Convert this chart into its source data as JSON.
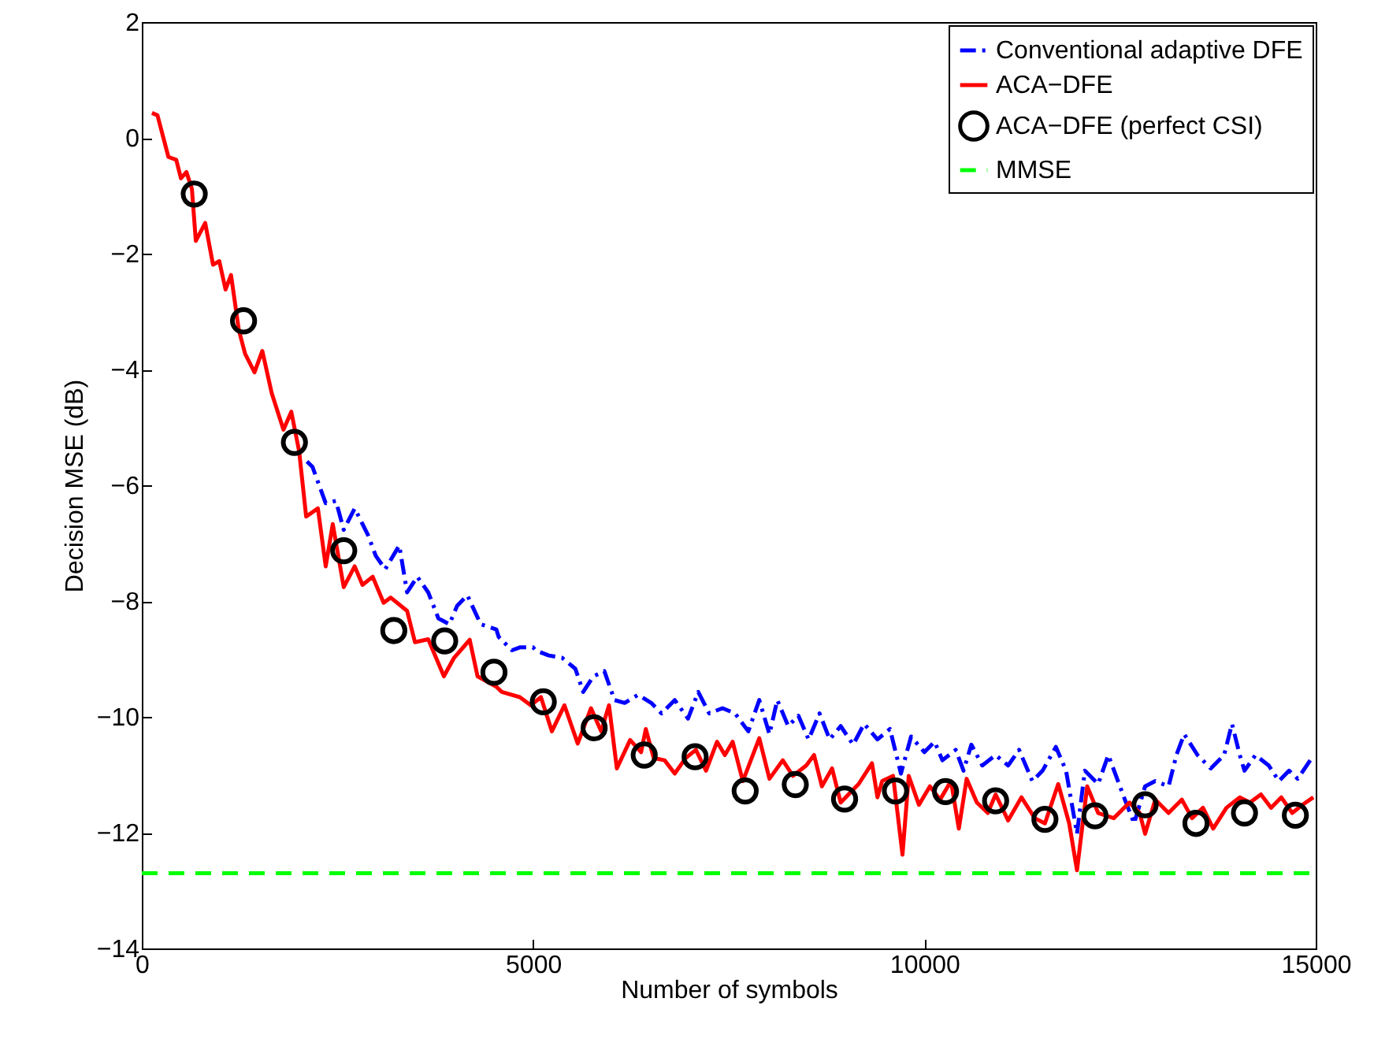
{
  "chart_data": {
    "type": "line",
    "xlabel": "Number of symbols",
    "ylabel": "Decision MSE (dB)",
    "xlim": [
      0,
      15000
    ],
    "ylim": [
      -14,
      2
    ],
    "xticks": [
      0,
      5000,
      10000,
      15000
    ],
    "yticks": [
      -14,
      -12,
      -10,
      -8,
      -6,
      -4,
      -2,
      0,
      2
    ],
    "legend": "top right",
    "series": [
      {
        "name": "Conventional adaptive DFE",
        "line_style": "dashdot",
        "color": "#0000ff",
        "x": [
          2110,
          2180,
          2350,
          2480,
          2580,
          2720,
          2890,
          2990,
          3110,
          3290,
          3390,
          3520,
          3660,
          3790,
          3930,
          4030,
          4160,
          4330,
          4530,
          4560,
          4730,
          4830,
          5000,
          5030,
          5200,
          5370,
          5540,
          5640,
          5770,
          5910,
          6040,
          6170,
          6340,
          6510,
          6640,
          6810,
          6980,
          7110,
          7250,
          7420,
          7580,
          7750,
          7890,
          8020,
          8120,
          8260,
          8390,
          8520,
          8660,
          8790,
          8930,
          9090,
          9230,
          9400,
          9560,
          9700,
          9830,
          10000,
          10130,
          10230,
          10400,
          10500,
          10600,
          10740,
          10910,
          11070,
          11210,
          11380,
          11510,
          11680,
          11810,
          11950,
          12050,
          12220,
          12350,
          12550,
          12680,
          12820,
          12950,
          13120,
          13220,
          13320,
          13490,
          13660,
          13830,
          13930,
          14030,
          14090,
          14230,
          14400,
          14530,
          14660,
          14770,
          14930
        ],
        "values": [
          -5.59,
          -5.68,
          -6.31,
          -6.27,
          -6.77,
          -6.4,
          -6.86,
          -7.22,
          -7.45,
          -7.04,
          -7.85,
          -7.58,
          -7.85,
          -8.3,
          -8.4,
          -8.08,
          -7.9,
          -8.4,
          -8.49,
          -8.62,
          -8.85,
          -8.8,
          -8.8,
          -8.85,
          -8.94,
          -8.98,
          -9.17,
          -9.57,
          -9.3,
          -9.21,
          -9.71,
          -9.76,
          -9.62,
          -9.76,
          -9.94,
          -9.71,
          -10.03,
          -9.57,
          -9.94,
          -9.85,
          -9.94,
          -10.25,
          -9.71,
          -10.3,
          -9.71,
          -10.16,
          -9.98,
          -10.39,
          -9.94,
          -10.39,
          -10.16,
          -10.48,
          -10.12,
          -10.39,
          -10.21,
          -10.98,
          -10.34,
          -10.61,
          -10.43,
          -10.75,
          -10.57,
          -10.93,
          -10.48,
          -10.84,
          -10.66,
          -10.84,
          -10.57,
          -11.11,
          -10.93,
          -10.52,
          -10.93,
          -12.02,
          -10.93,
          -11.16,
          -10.66,
          -11.39,
          -11.84,
          -11.2,
          -11.11,
          -11.2,
          -10.66,
          -10.3,
          -10.66,
          -10.89,
          -10.66,
          -10.12,
          -10.66,
          -10.93,
          -10.66,
          -10.84,
          -11.11,
          -10.93,
          -11.07,
          -10.75
        ]
      },
      {
        "name": "ACA−DFE",
        "line_style": "solid",
        "color": "#ff0000",
        "x": [
          130,
          200,
          340,
          440,
          500,
          570,
          640,
          690,
          810,
          910,
          990,
          1070,
          1140,
          1240,
          1320,
          1440,
          1540,
          1660,
          1810,
          1910,
          2010,
          2100,
          2250,
          2350,
          2440,
          2580,
          2720,
          2820,
          2950,
          3090,
          3180,
          3390,
          3490,
          3660,
          3860,
          3990,
          4190,
          4290,
          4530,
          4600,
          4830,
          4970,
          5100,
          5240,
          5400,
          5570,
          5740,
          5870,
          5970,
          6070,
          6240,
          6380,
          6440,
          6540,
          6680,
          6810,
          6950,
          7080,
          7210,
          7350,
          7450,
          7550,
          7680,
          7890,
          8020,
          8190,
          8320,
          8490,
          8590,
          8690,
          8820,
          8930,
          9160,
          9330,
          9400,
          9460,
          9600,
          9720,
          9800,
          9930,
          10070,
          10200,
          10340,
          10440,
          10540,
          10670,
          10810,
          10910,
          11070,
          11240,
          11410,
          11540,
          11710,
          11850,
          11950,
          12080,
          12220,
          12420,
          12620,
          12750,
          12820,
          12950,
          13120,
          13290,
          13420,
          13560,
          13690,
          13860,
          14030,
          14160,
          14300,
          14430,
          14560,
          14700,
          14830,
          14970
        ],
        "values": [
          0.43,
          0.39,
          -0.33,
          -0.38,
          -0.7,
          -0.59,
          -0.88,
          -1.78,
          -1.47,
          -2.19,
          -2.13,
          -2.62,
          -2.37,
          -3.32,
          -3.73,
          -4.05,
          -3.68,
          -4.41,
          -5.04,
          -4.73,
          -5.41,
          -6.54,
          -6.4,
          -7.4,
          -6.67,
          -7.76,
          -7.4,
          -7.72,
          -7.58,
          -8.03,
          -7.94,
          -8.17,
          -8.71,
          -8.66,
          -9.3,
          -8.98,
          -8.67,
          -9.3,
          -9.48,
          -9.57,
          -9.66,
          -9.8,
          -9.66,
          -10.25,
          -9.8,
          -10.46,
          -9.85,
          -10.25,
          -9.8,
          -10.89,
          -10.4,
          -10.61,
          -10.21,
          -10.71,
          -10.75,
          -10.98,
          -10.71,
          -10.57,
          -10.93,
          -10.43,
          -10.66,
          -10.43,
          -11.11,
          -10.37,
          -11.07,
          -10.75,
          -11.02,
          -10.84,
          -10.66,
          -11.2,
          -10.89,
          -11.48,
          -11.16,
          -10.8,
          -11.39,
          -11.11,
          -11.02,
          -12.38,
          -11.02,
          -11.52,
          -11.2,
          -11.43,
          -11.11,
          -11.93,
          -11.07,
          -11.48,
          -11.66,
          -11.34,
          -11.79,
          -11.39,
          -11.75,
          -11.84,
          -11.16,
          -11.84,
          -12.65,
          -11.2,
          -11.66,
          -11.75,
          -11.48,
          -11.66,
          -12.02,
          -11.43,
          -11.66,
          -11.43,
          -11.75,
          -11.57,
          -11.93,
          -11.57,
          -11.39,
          -11.48,
          -11.34,
          -11.57,
          -11.39,
          -11.66,
          -11.52,
          -11.39
        ]
      },
      {
        "name": "ACA−DFE (perfect CSI)",
        "type": "scatter",
        "marker": "circle",
        "color": "#000000",
        "x": [
          670,
          1300,
          1950,
          2580,
          3220,
          3870,
          4500,
          5130,
          5780,
          6420,
          7070,
          7710,
          8350,
          8980,
          9630,
          10270,
          10910,
          11540,
          12180,
          12820,
          13470,
          14090,
          14740
        ],
        "values": [
          -0.97,
          -3.16,
          -5.26,
          -7.13,
          -8.51,
          -8.69,
          -9.23,
          -9.74,
          -10.19,
          -10.66,
          -10.69,
          -11.28,
          -11.17,
          -11.42,
          -11.28,
          -11.29,
          -11.45,
          -11.77,
          -11.71,
          -11.52,
          -11.84,
          -11.66,
          -11.7
        ]
      },
      {
        "name": "MMSE",
        "line_style": "dashed",
        "color": "#00ff00",
        "x": [
          0,
          15000
        ],
        "values": [
          -12.7,
          -12.7
        ]
      }
    ]
  }
}
